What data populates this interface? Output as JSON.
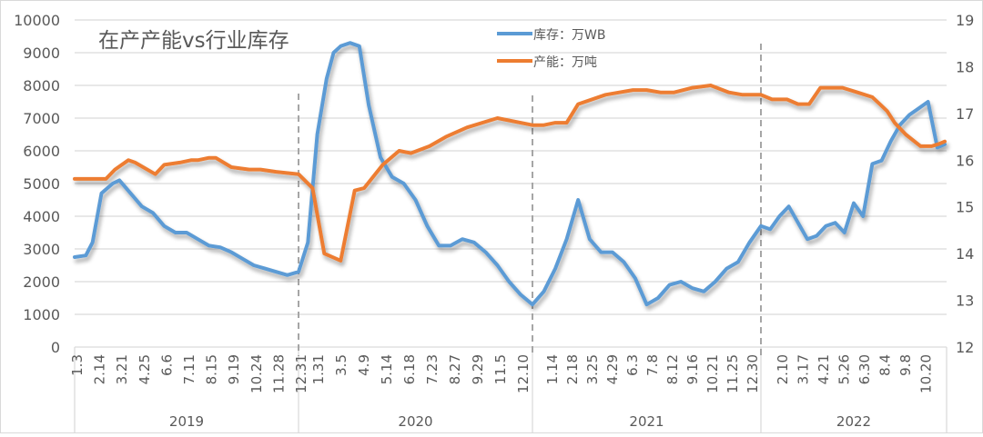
{
  "chart_data": {
    "type": "line",
    "title": "在产产能vs行业库存",
    "legend": [
      "库存：万WB",
      "产能：万吨"
    ],
    "legend_position": "top-center",
    "colors": {
      "inventory": "#5B9BD5",
      "capacity": "#ED7D31",
      "grid": "#D9D9D9",
      "text": "#595959",
      "separator": "#A6A6A6"
    },
    "y_left": {
      "min": 0,
      "max": 10000,
      "step": 1000,
      "ticks": [
        "0",
        "1000",
        "2000",
        "3000",
        "4000",
        "5000",
        "6000",
        "7000",
        "8000",
        "9000",
        "10000"
      ]
    },
    "y_right": {
      "min": 12,
      "max": 19,
      "step": 1,
      "ticks": [
        "12",
        "13",
        "14",
        "15",
        "16",
        "17",
        "18",
        "19"
      ]
    },
    "grid": true,
    "years": [
      {
        "label": "2019",
        "ticks": [
          "1.3",
          "2.14",
          "3.21",
          "4.25",
          "6.6",
          "7.11",
          "8.15",
          "9.19",
          "10.24",
          "11.28",
          "12.31"
        ]
      },
      {
        "label": "2020",
        "ticks": [
          "1.31",
          "3.5",
          "4.9",
          "5.14",
          "6.18",
          "7.23",
          "8.27",
          "9.29",
          "11.5",
          "12.10"
        ]
      },
      {
        "label": "2021",
        "ticks": [
          "1.14",
          "2.18",
          "3.25",
          "4.29",
          "6.3",
          "7.8",
          "8.12",
          "9.16",
          "10.21",
          "11.25",
          "12.30"
        ]
      },
      {
        "label": "2022",
        "ticks": [
          "2.10",
          "3.17",
          "4.21",
          "5.26",
          "6.30",
          "8.4",
          "9.8",
          "10.20"
        ]
      }
    ],
    "series": [
      {
        "name": "库存：万WB",
        "axis": "left",
        "x": [
          0,
          0.05,
          0.08,
          0.12,
          0.17,
          0.2,
          0.25,
          0.3,
          0.35,
          0.4,
          0.45,
          0.5,
          0.55,
          0.6,
          0.65,
          0.7,
          0.75,
          0.8,
          0.85,
          0.9,
          0.95,
          1.0,
          1.04,
          1.08,
          1.12,
          1.15,
          1.18,
          1.22,
          1.26,
          1.3,
          1.35,
          1.4,
          1.45,
          1.5,
          1.55,
          1.6,
          1.65,
          1.7,
          1.75,
          1.8,
          1.85,
          1.9,
          1.95,
          2.0,
          2.05,
          2.1,
          2.15,
          2.2,
          2.25,
          2.3,
          2.35,
          2.4,
          2.45,
          2.5,
          2.55,
          2.6,
          2.65,
          2.7,
          2.75,
          2.8,
          2.85,
          2.9,
          2.95,
          3.0,
          3.05,
          3.1,
          3.15,
          3.2,
          3.25,
          3.3,
          3.35,
          3.4,
          3.45,
          3.5,
          3.55,
          3.6,
          3.65,
          3.7,
          3.75,
          3.8,
          3.85,
          3.9,
          3.95,
          3.99
        ],
        "values": [
          2750,
          2800,
          3200,
          4700,
          5000,
          5100,
          4700,
          4300,
          4100,
          3700,
          3500,
          3500,
          3300,
          3100,
          3050,
          2900,
          2700,
          2500,
          2400,
          2300,
          2200,
          2300,
          3200,
          6500,
          8200,
          9000,
          9200,
          9300,
          9200,
          7400,
          5800,
          5200,
          5000,
          4500,
          3700,
          3100,
          3100,
          3300,
          3200,
          2900,
          2500,
          2000,
          1600,
          1300,
          1700,
          2400,
          3300,
          4500,
          3300,
          2900,
          2900,
          2600,
          2100,
          1300,
          1500,
          1900,
          2000,
          1800,
          1700,
          2000,
          2400,
          2600,
          3200,
          3700,
          3600,
          4000,
          4300,
          3800,
          3300,
          3400,
          3700,
          3800,
          3500,
          4400,
          4000,
          5600,
          5700,
          6300,
          6800,
          7100,
          7300,
          7500,
          6100,
          6200
        ]
      },
      {
        "name": "产能：万吨",
        "axis": "right",
        "x": [
          0,
          0.14,
          0.18,
          0.24,
          0.27,
          0.36,
          0.4,
          0.47,
          0.52,
          0.55,
          0.6,
          0.63,
          0.7,
          0.78,
          0.83,
          0.9,
          1.0,
          1.06,
          1.11,
          1.18,
          1.24,
          1.28,
          1.36,
          1.43,
          1.48,
          1.56,
          1.63,
          1.72,
          1.85,
          2.0,
          2.05,
          2.1,
          2.15,
          2.2,
          2.32,
          2.38,
          2.44,
          2.5,
          2.56,
          2.62,
          2.7,
          2.78,
          2.86,
          2.92,
          3.0,
          3.06,
          3.14,
          3.2,
          3.26,
          3.32,
          3.44,
          3.52,
          3.6,
          3.64,
          3.68,
          3.72,
          3.78,
          3.86,
          3.92,
          3.96,
          3.99
        ],
        "values": [
          15.6,
          15.6,
          15.8,
          16.0,
          15.95,
          15.7,
          15.9,
          15.95,
          16.0,
          16.0,
          16.05,
          16.05,
          15.85,
          15.8,
          15.8,
          15.75,
          15.7,
          15.4,
          14.0,
          13.85,
          15.35,
          15.4,
          15.9,
          16.2,
          16.15,
          16.3,
          16.5,
          16.7,
          16.9,
          16.75,
          16.75,
          16.8,
          16.8,
          17.2,
          17.4,
          17.45,
          17.5,
          17.5,
          17.45,
          17.45,
          17.55,
          17.6,
          17.45,
          17.4,
          17.4,
          17.3,
          17.3,
          17.2,
          17.2,
          17.55,
          17.55,
          17.45,
          17.35,
          17.2,
          17.05,
          16.8,
          16.55,
          16.3,
          16.3,
          16.35,
          16.4
        ]
      }
    ]
  }
}
